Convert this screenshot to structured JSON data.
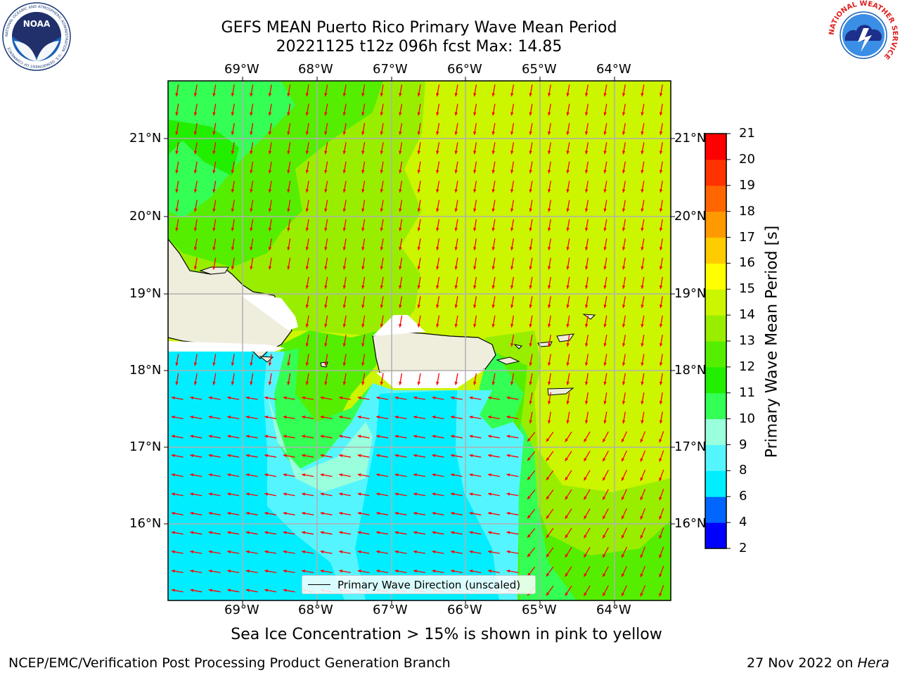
{
  "title_line1": "GEFS MEAN Puerto Rico Primary Wave Mean Period",
  "title_line2": "20221125 t12z 096h fcst   Max: 14.85",
  "caption": "Sea Ice Concentration > 15% is shown in pink to yellow",
  "footer_left": "NCEP/EMC/Verification Post Processing Product Generation Branch",
  "footer_right_date": "27 Nov 2022 on ",
  "footer_right_host": "Hera",
  "legend_label": "Primary Wave Direction (unscaled)",
  "colorbar": {
    "label": "Primary Wave Mean Period [s]",
    "ticks": [
      "2",
      "4",
      "6",
      "8",
      "9",
      "10",
      "11",
      "12",
      "13",
      "14",
      "15",
      "16",
      "17",
      "18",
      "19",
      "20",
      "21"
    ],
    "colors": [
      "#0000ff",
      "#0066ff",
      "#00eeff",
      "#55f5ff",
      "#99ffdd",
      "#33ff55",
      "#22ee00",
      "#55ee00",
      "#99ee00",
      "#ccf500",
      "#ffff00",
      "#ffcc00",
      "#ff9900",
      "#ff6600",
      "#ff3300",
      "#ff0000"
    ]
  },
  "axes": {
    "lon_labels": [
      "69°W",
      "68°W",
      "67°W",
      "66°W",
      "65°W",
      "64°W"
    ],
    "lat_labels": [
      "21°N",
      "20°N",
      "19°N",
      "18°N",
      "17°N",
      "16°N"
    ]
  },
  "logos": {
    "left_text": "NOAA",
    "left_ring": "NATIONAL OCEANIC AND ATMOSPHERIC ADMINISTRATION · U.S. DEPARTMENT OF COMMERCE",
    "right_ring": "NATIONAL WEATHER SERVICE"
  },
  "arrow_color": "#ff0000",
  "land_color": "#efeddc"
}
